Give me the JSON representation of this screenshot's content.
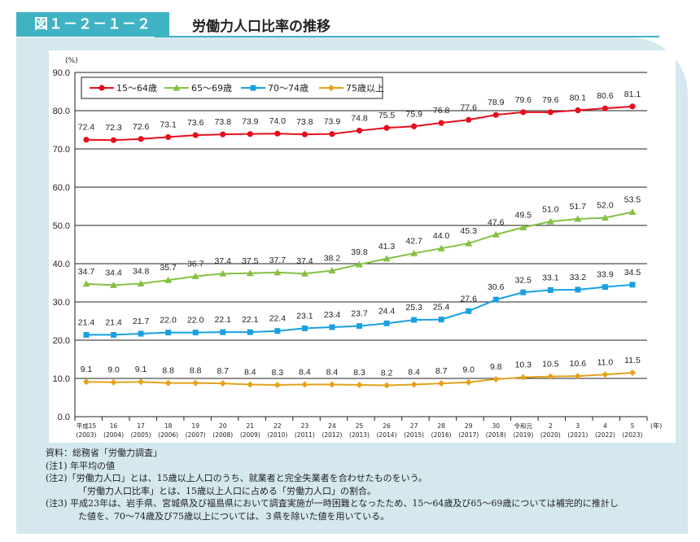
{
  "header": {
    "figure_number": "図１－２－１－２",
    "title": "労働力人口比率の推移"
  },
  "notes": [
    "資料：総務省「労働力調査」",
    "(注1) 年平均の値",
    "(注2)「労働力人口」とは、15歳以上人口のうち、就業者と完全失業者を合わせたものをいう。",
    "「労働力人口比率」とは、15歳以上人口に占める「労働力人口」の割合。",
    "(注3) 平成23年は、岩手県、宮城県及び福島県において調査実施が一時困難となったため、15～64歳及び65～69歳については補完的に推計し",
    "た値を、70～74歳及び75歳以上については、３県を除いた値を用いている。"
  ],
  "chart_data": {
    "type": "line",
    "ylabel": "(%)",
    "xlabel": "(年)",
    "ylim": [
      0,
      90
    ],
    "yticks": [
      "0.0",
      "10.0",
      "20.0",
      "30.0",
      "40.0",
      "50.0",
      "60.0",
      "70.0",
      "80.0",
      "90.0"
    ],
    "grid": true,
    "legend_placement": "top-left",
    "categories": [
      "平成15",
      "16",
      "17",
      "18",
      "19",
      "20",
      "21",
      "22",
      "23",
      "24",
      "25",
      "26",
      "27",
      "28",
      "29",
      "30",
      "令和元",
      "2",
      "3",
      "4",
      "5"
    ],
    "categories_sub": [
      "(2003)",
      "(2004)",
      "(2005)",
      "(2006)",
      "(2007)",
      "(2008)",
      "(2009)",
      "(2010)",
      "(2011)",
      "(2012)",
      "(2013)",
      "(2014)",
      "(2015)",
      "(2016)",
      "(2017)",
      "(2018)",
      "(2019)",
      "(2020)",
      "(2021)",
      "(2022)",
      "(2023)"
    ],
    "series": [
      {
        "name": "15～64歳",
        "color": "#e60f1e",
        "marker": "circle",
        "values": [
          72.4,
          72.3,
          72.6,
          73.1,
          73.6,
          73.8,
          73.9,
          74.0,
          73.8,
          73.9,
          74.8,
          75.5,
          75.9,
          76.8,
          77.6,
          78.9,
          79.6,
          79.6,
          80.1,
          80.6,
          81.1
        ]
      },
      {
        "name": "65～69歳",
        "color": "#86c043",
        "marker": "triangle",
        "values": [
          34.7,
          34.4,
          34.8,
          35.7,
          36.7,
          37.4,
          37.5,
          37.7,
          37.4,
          38.2,
          39.8,
          41.3,
          42.7,
          44.0,
          45.3,
          47.6,
          49.5,
          51.0,
          51.7,
          52.0,
          53.5
        ]
      },
      {
        "name": "70～74歳",
        "color": "#18a0e0",
        "marker": "square",
        "values": [
          21.4,
          21.4,
          21.7,
          22.0,
          22.0,
          22.1,
          22.1,
          22.4,
          23.1,
          23.4,
          23.7,
          24.4,
          25.3,
          25.4,
          27.6,
          30.6,
          32.5,
          33.1,
          33.2,
          33.9,
          34.5
        ]
      },
      {
        "name": "75歳以上",
        "color": "#e3a21a",
        "marker": "diamond",
        "values": [
          9.1,
          9.0,
          9.1,
          8.8,
          8.8,
          8.7,
          8.4,
          8.3,
          8.4,
          8.4,
          8.3,
          8.2,
          8.4,
          8.7,
          9.0,
          9.8,
          10.3,
          10.5,
          10.6,
          11.0,
          11.5
        ]
      }
    ]
  }
}
